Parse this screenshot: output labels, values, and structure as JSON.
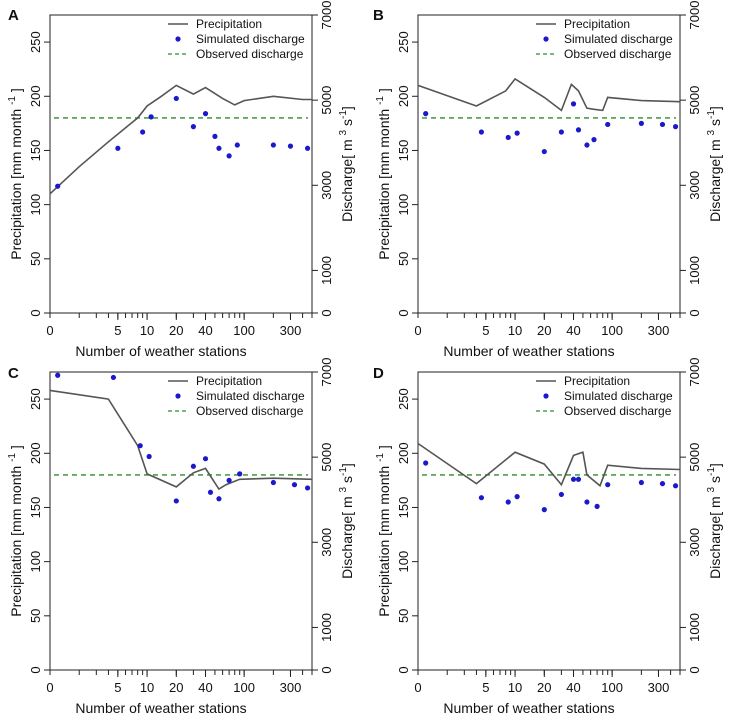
{
  "figure": {
    "xlabel": "Number of weather stations",
    "ylabel_left": "Precipitation [mm month",
    "ylabel_left_sup": "-1",
    "ylabel_left_close": "]",
    "ylabel_right": "Discharge[ m",
    "ylabel_right_sup1": "3",
    "ylabel_right_mid": " s",
    "ylabel_right_sup2": "-1",
    "ylabel_right_close": "]",
    "legend": {
      "precipitation": "Precipitation",
      "simulated": "Simulated discharge",
      "observed": "Observed discharge"
    },
    "colors": {
      "precipitation": "#555555",
      "simulated": "#1a1acc",
      "observed": "#2e8b2e"
    }
  },
  "chart_data": [
    {
      "panel": "A",
      "type": "line",
      "x_scale": "log",
      "xlim": [
        1,
        500
      ],
      "x_ticks": [
        5,
        10,
        20,
        40,
        100,
        300
      ],
      "ylim_left": [
        0,
        275
      ],
      "y_ticks_left": [
        0,
        50,
        100,
        150,
        200,
        250
      ],
      "ylim_right": [
        0,
        7000
      ],
      "y_ticks_right": [
        0,
        1000,
        3000,
        5000,
        7000
      ],
      "precipitation": {
        "x": [
          1,
          2,
          4,
          8,
          10,
          14,
          20,
          30,
          40,
          60,
          80,
          100,
          200,
          400,
          500
        ],
        "y": [
          110,
          135,
          158,
          180,
          191,
          200,
          210,
          202,
          208,
          198,
          192,
          196,
          200,
          197,
          197
        ]
      },
      "simulated_discharge": {
        "x": [
          1.2,
          5,
          9,
          11,
          20,
          30,
          40,
          50,
          55,
          70,
          85,
          200,
          300,
          450
        ],
        "y": [
          117,
          152,
          167,
          181,
          198,
          172,
          184,
          163,
          152,
          145,
          155,
          155,
          154,
          152
        ]
      },
      "observed_discharge": 180
    },
    {
      "panel": "B",
      "type": "line",
      "x_scale": "log",
      "xlim": [
        1,
        500
      ],
      "x_ticks": [
        5,
        10,
        20,
        40,
        100,
        300
      ],
      "ylim_left": [
        0,
        275
      ],
      "y_ticks_left": [
        0,
        50,
        100,
        150,
        200,
        250
      ],
      "ylim_right": [
        0,
        7000
      ],
      "y_ticks_right": [
        0,
        1000,
        3000,
        5000,
        7000
      ],
      "precipitation": {
        "x": [
          1,
          4,
          8,
          10,
          20,
          30,
          38,
          45,
          55,
          65,
          80,
          90,
          200,
          500
        ],
        "y": [
          210,
          191,
          205,
          216,
          199,
          187,
          211,
          205,
          189,
          188,
          187,
          199,
          196,
          195
        ]
      },
      "simulated_discharge": {
        "x": [
          1.2,
          4.5,
          8.5,
          10.5,
          20,
          30,
          40,
          45,
          55,
          65,
          90,
          200,
          330,
          450
        ],
        "y": [
          184,
          167,
          162,
          166,
          149,
          167,
          193,
          169,
          155,
          160,
          174,
          175,
          174,
          172
        ]
      },
      "observed_discharge": 180
    },
    {
      "panel": "C",
      "type": "line",
      "x_scale": "log",
      "xlim": [
        1,
        500
      ],
      "x_ticks": [
        5,
        10,
        20,
        40,
        100,
        300
      ],
      "ylim_left": [
        0,
        275
      ],
      "y_ticks_left": [
        0,
        50,
        100,
        150,
        200,
        250
      ],
      "ylim_right": [
        0,
        7000
      ],
      "y_ticks_right": [
        0,
        1000,
        3000,
        5000,
        7000
      ],
      "precipitation": {
        "x": [
          1,
          4,
          8,
          10,
          20,
          30,
          40,
          55,
          65,
          90,
          200,
          500
        ],
        "y": [
          258,
          250,
          207,
          181,
          169,
          182,
          186,
          167,
          171,
          176,
          177,
          176
        ]
      },
      "simulated_discharge": {
        "x": [
          1.2,
          4.5,
          8.5,
          10.5,
          20,
          30,
          40,
          45,
          55,
          70,
          90,
          200,
          330,
          450
        ],
        "y": [
          272,
          270,
          207,
          197,
          156,
          188,
          195,
          164,
          158,
          175,
          181,
          173,
          171,
          168
        ]
      },
      "observed_discharge": 180
    },
    {
      "panel": "D",
      "type": "line",
      "x_scale": "log",
      "xlim": [
        1,
        500
      ],
      "x_ticks": [
        5,
        10,
        20,
        40,
        100,
        300
      ],
      "ylim_left": [
        0,
        275
      ],
      "y_ticks_left": [
        0,
        50,
        100,
        150,
        200,
        250
      ],
      "ylim_right": [
        0,
        7000
      ],
      "y_ticks_right": [
        0,
        1000,
        3000,
        5000,
        7000
      ],
      "precipitation": {
        "x": [
          1,
          4,
          10,
          20,
          30,
          40,
          50,
          55,
          75,
          90,
          200,
          500
        ],
        "y": [
          209,
          172,
          201,
          190,
          171,
          198,
          201,
          180,
          170,
          189,
          186,
          185
        ]
      },
      "simulated_discharge": {
        "x": [
          1.2,
          4.5,
          8.5,
          10.5,
          20,
          30,
          40,
          45,
          55,
          70,
          90,
          200,
          330,
          450
        ],
        "y": [
          191,
          159,
          155,
          160,
          148,
          162,
          176,
          176,
          155,
          151,
          171,
          173,
          172,
          170
        ]
      },
      "observed_discharge": 180
    }
  ]
}
